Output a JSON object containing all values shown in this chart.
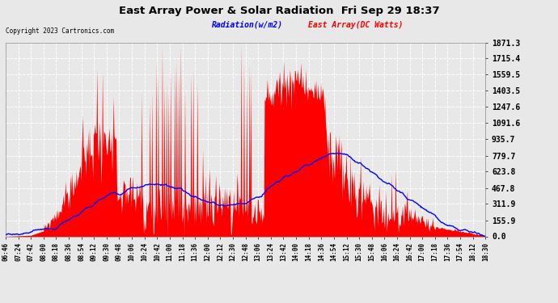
{
  "title": "East Array Power & Solar Radiation  Fri Sep 29 18:37",
  "copyright": "Copyright 2023 Cartronics.com",
  "legend_radiation": "Radiation(w/m2)",
  "legend_east": "East Array(DC Watts)",
  "radiation_color": "blue",
  "east_color": "red",
  "bg_color": "#e8e8e8",
  "plot_bg_color": "#e8e8e8",
  "grid_color": "white",
  "yticks": [
    0.0,
    155.9,
    311.9,
    467.8,
    623.8,
    779.7,
    935.7,
    1091.6,
    1247.6,
    1403.5,
    1559.5,
    1715.4,
    1871.3
  ],
  "ymax": 1871.3,
  "ymin": 0.0,
  "xtick_labels": [
    "06:46",
    "07:24",
    "07:42",
    "08:00",
    "08:18",
    "08:36",
    "08:54",
    "09:12",
    "09:30",
    "09:48",
    "10:06",
    "10:24",
    "10:42",
    "11:00",
    "11:18",
    "11:36",
    "12:00",
    "12:12",
    "12:30",
    "12:48",
    "13:06",
    "13:24",
    "13:42",
    "14:00",
    "14:18",
    "14:36",
    "14:54",
    "15:12",
    "15:30",
    "15:48",
    "16:06",
    "16:24",
    "16:42",
    "17:00",
    "17:18",
    "17:36",
    "17:54",
    "18:12",
    "18:30"
  ]
}
